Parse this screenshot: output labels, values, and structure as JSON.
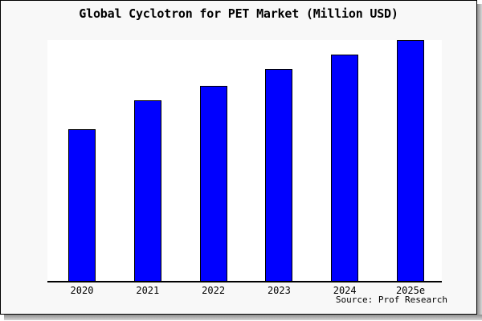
{
  "chart": {
    "source": "Source: Prof Research",
    "frame_background": "#f8f8f8",
    "plot_background": "#ffffff",
    "bar_fill": "#0000ff",
    "bar_border": "#000000",
    "axis_color": "#000000",
    "text_color": "#000000",
    "shadow_color": "#8f8f8f"
  },
  "chart_data": {
    "type": "bar",
    "title": "Global Cyclotron for PET Market (Million USD)",
    "categories": [
      "2020",
      "2021",
      "2022",
      "2023",
      "2024",
      "2025e"
    ],
    "values": [
      63,
      75,
      81,
      88,
      94,
      100
    ],
    "xlabel": "",
    "ylabel": "",
    "ylim": [
      0,
      100
    ],
    "grid": false,
    "legend": null,
    "y_axis_ticks_visible": false,
    "annotations": [
      "Source: Prof Research"
    ]
  }
}
